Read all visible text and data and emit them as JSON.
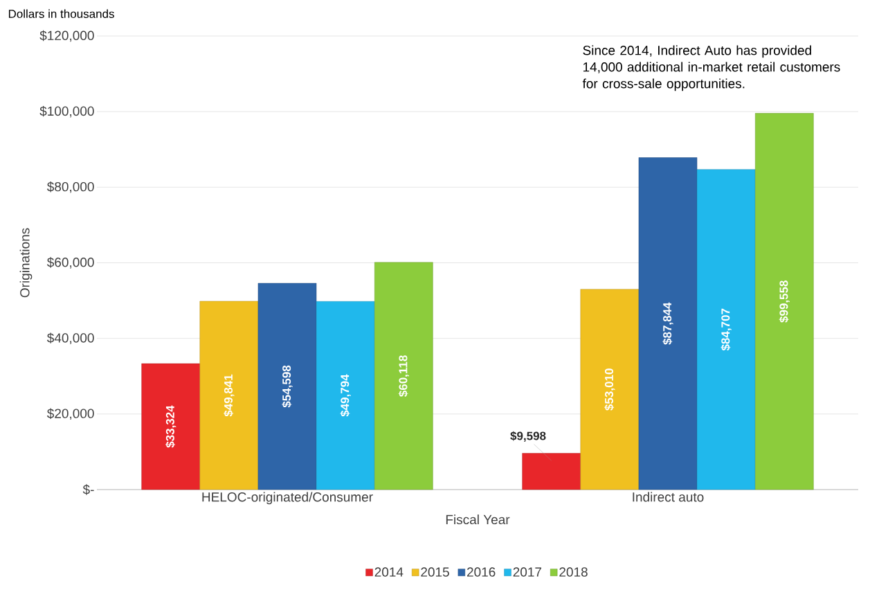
{
  "chart_data": {
    "type": "bar",
    "xlabel": "Fiscal Year",
    "ylabel": "Originations",
    "annotations": [
      "Dollars in thousands",
      "Since 2014, Indirect Auto has provided 14,000 additional in-market retail customers for cross-sale opportunities."
    ],
    "categories": [
      "HELOC-originated/Consumer",
      "Indirect auto"
    ],
    "series": [
      {
        "name": "2014",
        "color": "#e8262a",
        "values": [
          33324,
          9598
        ],
        "value_labels": [
          "$33,324",
          "$9,598"
        ]
      },
      {
        "name": "2015",
        "color": "#f0c020",
        "values": [
          49841,
          53010
        ],
        "value_labels": [
          "$49,841",
          "$53,010"
        ]
      },
      {
        "name": "2016",
        "color": "#2e65a8",
        "values": [
          54598,
          87844
        ],
        "value_labels": [
          "$54,598",
          "$87,844"
        ]
      },
      {
        "name": "2017",
        "color": "#20b8ec",
        "values": [
          49794,
          84707
        ],
        "value_labels": [
          "$49,794",
          "$84,707"
        ]
      },
      {
        "name": "2018",
        "color": "#8ccc3c",
        "values": [
          60118,
          99558
        ],
        "value_labels": [
          "$60,118",
          "$99,558"
        ]
      }
    ],
    "ylim": [
      0,
      120000
    ],
    "yticks": [
      {
        "value": 0,
        "label": "$-"
      },
      {
        "value": 20000,
        "label": "$20,000"
      },
      {
        "value": 40000,
        "label": "$40,000"
      },
      {
        "value": 60000,
        "label": "$60,000"
      },
      {
        "value": 80000,
        "label": "$80,000"
      },
      {
        "value": 100000,
        "label": "$100,000"
      },
      {
        "value": 120000,
        "label": "$120,000"
      }
    ],
    "grid": "y",
    "legend": "bottom"
  }
}
